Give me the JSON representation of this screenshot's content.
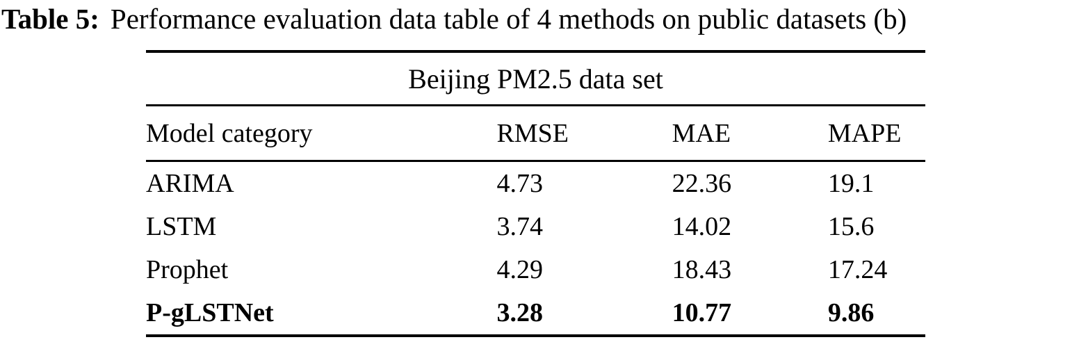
{
  "caption": {
    "label": "Table 5:",
    "text": "Performance evaluation data table of 4 methods on public datasets (b)"
  },
  "table": {
    "title": "Beijing PM2.5 data set",
    "columns": [
      "Model category",
      "RMSE",
      "MAE",
      "MAPE"
    ],
    "rows": [
      {
        "model": "ARIMA",
        "rmse": "4.73",
        "mae": "22.36",
        "mape": "19.1",
        "emphasis": "normal"
      },
      {
        "model": "LSTM",
        "rmse": "3.74",
        "mae": "14.02",
        "mape": "15.6",
        "emphasis": "normal"
      },
      {
        "model": "Prophet",
        "rmse": "4.29",
        "mae": "18.43",
        "mape": "17.24",
        "emphasis": "normal"
      },
      {
        "model": "P-gLSTNet",
        "rmse": "3.28",
        "mae": "10.77",
        "mape": "9.86",
        "emphasis": "bold"
      }
    ]
  },
  "colors": {
    "text": "#000000",
    "background": "#ffffff",
    "rule": "#000000"
  }
}
